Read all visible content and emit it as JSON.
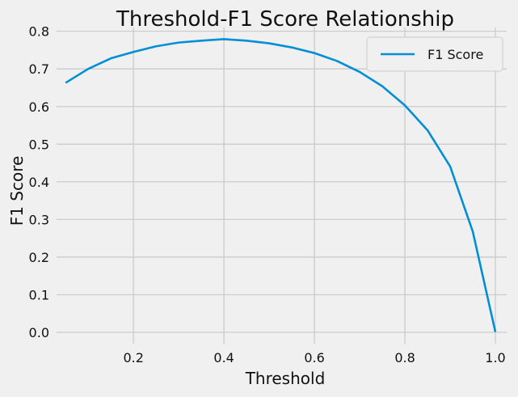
{
  "chart_data": {
    "type": "line",
    "title": "Threshold-F1 Score Relationship",
    "xlabel": "Threshold",
    "ylabel": "F1 Score",
    "xlim": [
      0.03,
      1.025
    ],
    "ylim": [
      -0.03,
      0.81
    ],
    "x_ticks": [
      0.2,
      0.4,
      0.6,
      0.8,
      1.0
    ],
    "x_tick_labels": [
      "0.2",
      "0.4",
      "0.6",
      "0.8",
      "1.0"
    ],
    "y_ticks": [
      0.0,
      0.1,
      0.2,
      0.3,
      0.4,
      0.5,
      0.6,
      0.7,
      0.8
    ],
    "y_tick_labels": [
      "0.0",
      "0.1",
      "0.2",
      "0.3",
      "0.4",
      "0.5",
      "0.6",
      "0.7",
      "0.8"
    ],
    "grid": true,
    "legend_position": "top-right",
    "series": [
      {
        "name": "F1 Score",
        "color": "#008fd5",
        "x": [
          0.05,
          0.1,
          0.15,
          0.2,
          0.25,
          0.3,
          0.35,
          0.4,
          0.45,
          0.5,
          0.55,
          0.6,
          0.65,
          0.7,
          0.75,
          0.8,
          0.85,
          0.9,
          0.95,
          1.0
        ],
        "y": [
          0.663,
          0.7,
          0.728,
          0.745,
          0.76,
          0.77,
          0.775,
          0.779,
          0.775,
          0.768,
          0.757,
          0.742,
          0.721,
          0.692,
          0.654,
          0.603,
          0.537,
          0.441,
          0.268,
          0.001
        ]
      }
    ]
  }
}
